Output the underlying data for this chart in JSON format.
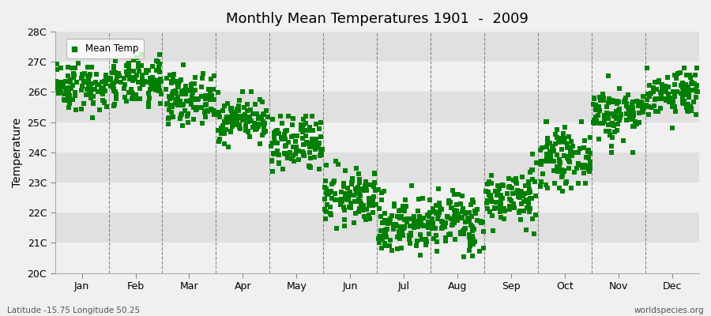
{
  "title": "Monthly Mean Temperatures 1901  -  2009",
  "ylabel": "Temperature",
  "xlabel_labels": [
    "Jan",
    "Feb",
    "Mar",
    "Apr",
    "May",
    "Jun",
    "Jul",
    "Aug",
    "Sep",
    "Oct",
    "Nov",
    "Dec"
  ],
  "latitude_label": "Latitude -15.75 Longitude 50.25",
  "worldspecies_label": "worldspecies.org",
  "legend_label": "Mean Temp",
  "ylim": [
    20,
    28
  ],
  "ytick_labels": [
    "20C",
    "21C",
    "22C",
    "23C",
    "24C",
    "25C",
    "26C",
    "27C",
    "28C"
  ],
  "ytick_values": [
    20,
    21,
    22,
    23,
    24,
    25,
    26,
    27,
    28
  ],
  "marker_color": "#008000",
  "marker": "s",
  "marker_size": 4,
  "bg_light": "#f0f0f0",
  "bg_dark": "#e0e0e0",
  "monthly_means": [
    26.2,
    26.3,
    25.8,
    25.1,
    24.2,
    22.5,
    21.6,
    21.7,
    22.5,
    23.8,
    25.3,
    26.0
  ],
  "monthly_stds": [
    0.4,
    0.4,
    0.4,
    0.35,
    0.5,
    0.45,
    0.5,
    0.5,
    0.45,
    0.45,
    0.45,
    0.4
  ],
  "monthly_ranges": [
    [
      24.8,
      27.1
    ],
    [
      25.0,
      27.4
    ],
    [
      24.7,
      26.9
    ],
    [
      24.1,
      26.0
    ],
    [
      23.0,
      25.2
    ],
    [
      21.0,
      23.7
    ],
    [
      20.0,
      23.0
    ],
    [
      20.3,
      22.8
    ],
    [
      21.3,
      24.9
    ],
    [
      22.6,
      26.3
    ],
    [
      24.0,
      26.6
    ],
    [
      24.8,
      26.8
    ]
  ],
  "n_points": 109
}
